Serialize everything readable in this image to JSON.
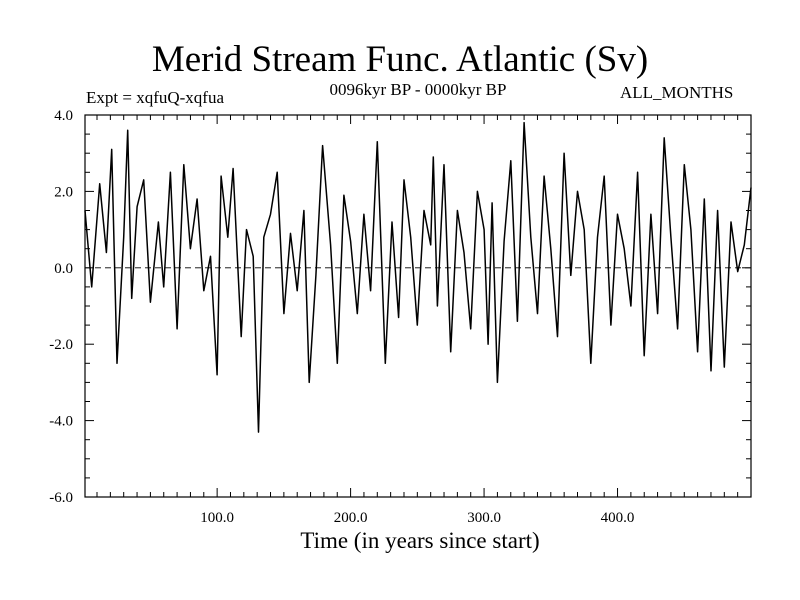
{
  "chart_data": {
    "type": "line",
    "title": "Merid Stream Func. Atlantic (Sv)",
    "experiment_label": "Expt = xqfuQ-xqfua",
    "period_label": "0096kyr BP - 0000kyr BP",
    "season_label": "ALL_MONTHS",
    "xlabel": "Time (in years since start)",
    "ylabel": "",
    "xlim": [
      1,
      500
    ],
    "ylim": [
      -6.0,
      4.0
    ],
    "x_ticks": [
      100.0,
      200.0,
      300.0,
      400.0
    ],
    "x_tick_labels": [
      "100.0",
      "200.0",
      "300.0",
      "400.0"
    ],
    "y_ticks": [
      4.0,
      2.0,
      0.0,
      -2.0,
      -4.0,
      -6.0
    ],
    "y_tick_labels": [
      "4.0",
      "2.0",
      "0.0",
      "-2.0",
      "-4.0",
      "-6.0"
    ],
    "zero_line": true,
    "grid": false,
    "series": [
      {
        "color": "#000000",
        "x": [
          1,
          6,
          12,
          17,
          21,
          25,
          30,
          33,
          36,
          40,
          45,
          50,
          56,
          60,
          65,
          70,
          75,
          80,
          85,
          90,
          95,
          100,
          103,
          108,
          112,
          118,
          122,
          127,
          131,
          135,
          140,
          145,
          150,
          155,
          160,
          165,
          169,
          174,
          179,
          185,
          190,
          195,
          200,
          205,
          210,
          215,
          220,
          226,
          231,
          236,
          240,
          245,
          250,
          255,
          260,
          262,
          265,
          270,
          275,
          280,
          285,
          290,
          295,
          300,
          303,
          306,
          310,
          315,
          320,
          325,
          330,
          335,
          340,
          345,
          350,
          355,
          360,
          365,
          370,
          375,
          380,
          385,
          390,
          395,
          400,
          405,
          410,
          415,
          420,
          425,
          430,
          435,
          440,
          445,
          450,
          455,
          460,
          465,
          470,
          475,
          480,
          485,
          490,
          495,
          500
        ],
        "y": [
          1.5,
          -0.5,
          2.2,
          0.4,
          3.1,
          -2.5,
          0.8,
          3.6,
          -0.8,
          1.6,
          2.3,
          -0.9,
          1.2,
          -0.5,
          2.5,
          -1.6,
          2.7,
          0.5,
          1.8,
          -0.6,
          0.3,
          -2.8,
          2.4,
          0.8,
          2.6,
          -1.8,
          1.0,
          0.3,
          -4.3,
          0.8,
          1.4,
          2.5,
          -1.2,
          0.9,
          -0.6,
          1.5,
          -3.0,
          -0.2,
          3.2,
          0.6,
          -2.5,
          1.9,
          0.7,
          -1.2,
          1.4,
          -0.6,
          3.3,
          -2.5,
          1.2,
          -1.3,
          2.3,
          0.8,
          -1.5,
          1.5,
          0.6,
          2.9,
          -1.0,
          2.7,
          -2.2,
          1.5,
          0.4,
          -1.6,
          2.0,
          1.0,
          -2.0,
          1.7,
          -3.0,
          0.7,
          2.8,
          -1.4,
          3.8,
          0.8,
          -1.2,
          2.4,
          0.5,
          -1.8,
          3.0,
          -0.2,
          2.0,
          1.0,
          -2.5,
          0.8,
          2.4,
          -1.5,
          1.4,
          0.5,
          -1.0,
          2.5,
          -2.3,
          1.4,
          -1.2,
          3.4,
          0.8,
          -1.6,
          2.7,
          1.0,
          -2.2,
          1.8,
          -2.7,
          1.5,
          -2.6,
          1.2,
          -0.1,
          0.6,
          2.1
        ]
      }
    ]
  }
}
